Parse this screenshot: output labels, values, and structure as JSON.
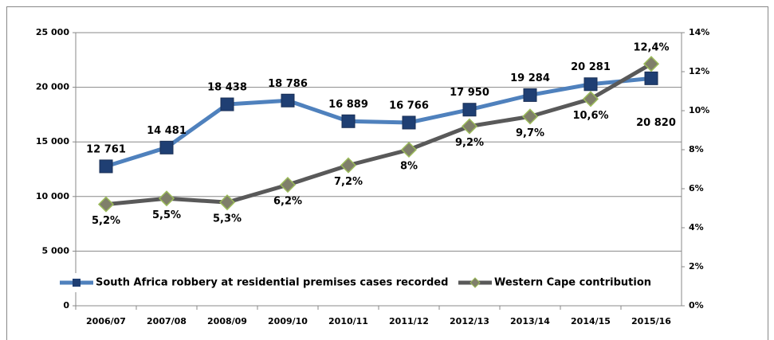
{
  "chart_data": {
    "type": "line",
    "categories": [
      "2006/07",
      "2007/08",
      "2008/09",
      "2009/10",
      "2010/11",
      "2011/12",
      "2012/13",
      "2013/14",
      "2014/15",
      "2015/16"
    ],
    "series": [
      {
        "name": "South Africa robbery at residential premises cases recorded",
        "color": "#4f81bd",
        "marker_color": "#1f3f73",
        "values": [
          12761,
          14481,
          18438,
          18786,
          16889,
          16766,
          17950,
          19284,
          20281,
          20820
        ],
        "value_labels": [
          "12 761",
          "14 481",
          "18 438",
          "18 786",
          "16 889",
          "16 766",
          "17 950",
          "19 284",
          "20 281",
          "20 820"
        ]
      },
      {
        "name": "Western Cape contribution",
        "color": "#595959",
        "marker_color": "#7f7f6a",
        "axis": "y2",
        "values": [
          5.2,
          5.5,
          5.3,
          6.2,
          7.2,
          8,
          9.2,
          9.7,
          10.6,
          12.4
        ],
        "value_labels": [
          "5,2%",
          "5,5%",
          "5,3%",
          "6,2%",
          "7,2%",
          "8%",
          "9,2%",
          "9,7%",
          "10,6%",
          "12,4%"
        ]
      }
    ],
    "ylim": [
      0,
      25000
    ],
    "yticks": [
      0,
      {
        "value": 5000,
        "label": "5 000"
      },
      {
        "value": 10000,
        "label": "10 000"
      },
      {
        "value": 15000,
        "label": "15 000"
      },
      {
        "value": 20000,
        "label": "20 000"
      },
      {
        "value": 25000,
        "label": "25 000"
      }
    ],
    "y2lim": [
      0,
      14
    ],
    "y2ticks": [
      {
        "value": 0,
        "label": "0%"
      },
      {
        "value": 2,
        "label": "2%"
      },
      {
        "value": 4,
        "label": "4%"
      },
      {
        "value": 6,
        "label": "6%"
      },
      {
        "value": 8,
        "label": "8%"
      },
      {
        "value": 10,
        "label": "10%"
      },
      {
        "value": 12,
        "label": "12%"
      },
      {
        "value": 14,
        "label": "14%"
      }
    ],
    "grid": true,
    "legend": "bottom"
  }
}
